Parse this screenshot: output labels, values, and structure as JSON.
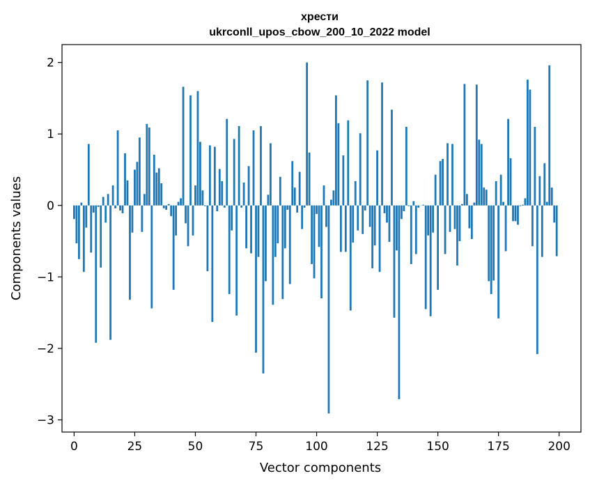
{
  "chart_data": {
    "type": "bar",
    "title_line1": "хрести",
    "title_line2": "ukrconll_upos_cbow_200_10_2022 model",
    "xlabel": "Vector components",
    "ylabel": "Components values",
    "xlim": [
      -5,
      209
    ],
    "ylim": [
      -3.17,
      2.25
    ],
    "x_ticks": [
      0,
      25,
      50,
      75,
      100,
      125,
      150,
      175,
      200
    ],
    "x_tick_labels": [
      "0",
      "25",
      "50",
      "75",
      "100",
      "125",
      "150",
      "175",
      "200"
    ],
    "y_ticks": [
      -3,
      -2,
      -1,
      0,
      1,
      2
    ],
    "y_tick_labels": [
      "−3",
      "−2",
      "−1",
      "0",
      "1",
      "2"
    ],
    "bar_color": "#1f77b4",
    "grid": false,
    "values": [
      -0.19,
      -0.53,
      -0.75,
      0.04,
      -0.93,
      -0.31,
      0.86,
      -0.66,
      -0.1,
      -1.92,
      -0.02,
      -0.87,
      0.12,
      -0.24,
      0.16,
      -1.88,
      0.28,
      -0.04,
      1.05,
      -0.07,
      -0.11,
      0.73,
      0.35,
      -1.32,
      -0.38,
      0.5,
      0.61,
      0.95,
      -0.37,
      0.16,
      1.14,
      1.09,
      -1.44,
      0.71,
      0.46,
      0.52,
      0.31,
      -0.04,
      -0.06,
      0.02,
      -0.15,
      -1.18,
      -0.42,
      0.05,
      0.1,
      1.66,
      -0.25,
      -0.57,
      1.54,
      -0.42,
      0.28,
      1.6,
      0.89,
      0.21,
      -0.01,
      -0.92,
      0.84,
      -1.63,
      0.82,
      -0.08,
      0.51,
      0.34,
      -0.03,
      1.21,
      -1.24,
      -0.35,
      0.93,
      -1.54,
      1.11,
      -0.03,
      0.32,
      -0.6,
      0.55,
      -0.67,
      1.05,
      -2.06,
      -0.72,
      1.11,
      -2.35,
      -1.06,
      0.15,
      0.87,
      -1.39,
      -0.72,
      -0.53,
      0.4,
      -1.31,
      -0.6,
      -0.06,
      -1.1,
      0.62,
      0.25,
      -0.1,
      0.47,
      -0.33,
      -0.03,
      2.0,
      0.74,
      -0.82,
      -1.02,
      -0.12,
      -0.58,
      -1.3,
      0.28,
      -0.3,
      -2.91,
      0.08,
      0.21,
      1.54,
      1.15,
      -0.65,
      0.7,
      -0.65,
      1.19,
      -1.47,
      -0.52,
      0.34,
      -0.35,
      1.01,
      -0.4,
      -0.07,
      1.75,
      -0.3,
      -0.88,
      -0.56,
      0.77,
      -0.93,
      1.72,
      -0.11,
      -0.24,
      -0.51,
      1.34,
      -1.57,
      -0.63,
      -2.71,
      -0.19,
      -0.08,
      1.1,
      -0.01,
      -0.82,
      0.06,
      -0.68,
      -0.03,
      0.0,
      0.01,
      -1.45,
      -0.42,
      -1.55,
      -0.38,
      0.43,
      -1.18,
      0.62,
      0.65,
      -0.68,
      0.87,
      -0.37,
      0.86,
      -0.33,
      -0.84,
      -0.5,
      0.02,
      1.7,
      0.16,
      -0.32,
      -0.47,
      0.04,
      1.69,
      0.92,
      0.86,
      0.25,
      0.22,
      -1.06,
      -1.24,
      -1.05,
      0.34,
      -1.58,
      0.43,
      0.05,
      -0.64,
      1.21,
      0.66,
      -0.22,
      -0.22,
      -0.27,
      -0.01,
      0.01,
      0.1,
      1.76,
      1.62,
      -0.57,
      1.1,
      -2.08,
      0.41,
      -0.72,
      0.59,
      0.05,
      1.96,
      0.25,
      -0.24,
      -0.71
    ]
  }
}
